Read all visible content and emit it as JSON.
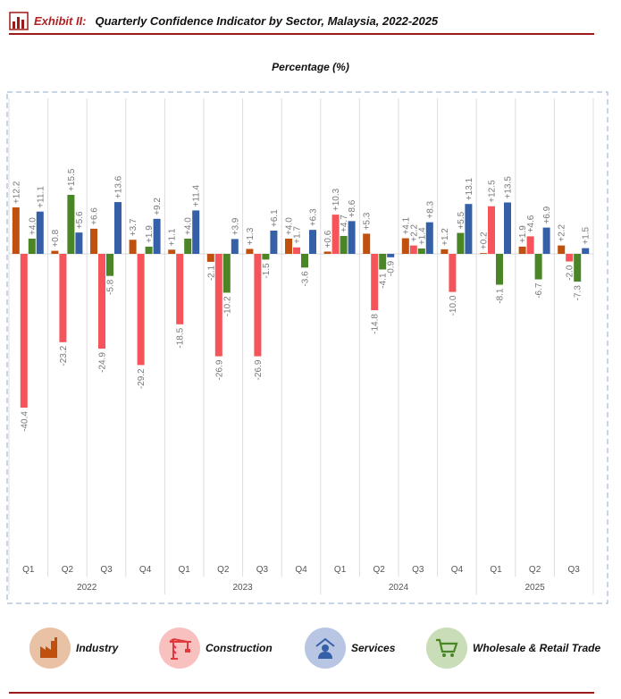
{
  "header": {
    "exhibit": "Exhibit II:",
    "title": "Quarterly Confidence Indicator by Sector, Malaysia, 2022-2025",
    "icon": "bar-chart-icon"
  },
  "chart_data": {
    "type": "bar",
    "ylabel": "Percentage (%)",
    "categories": [
      "Q1",
      "Q2",
      "Q3",
      "Q4",
      "Q1",
      "Q2",
      "Q3",
      "Q4",
      "Q1",
      "Q2",
      "Q3",
      "Q4",
      "Q1",
      "Q2",
      "Q3"
    ],
    "years": [
      {
        "label": "2022",
        "quarters": 4
      },
      {
        "label": "2023",
        "quarters": 4
      },
      {
        "label": "2024",
        "quarters": 4
      },
      {
        "label": "2025",
        "quarters": 3
      }
    ],
    "series": [
      {
        "name": "Industry",
        "color": "#C0500E",
        "values": [
          12.2,
          0.8,
          6.6,
          3.7,
          1.1,
          -2.1,
          1.3,
          4.0,
          0.6,
          5.3,
          4.1,
          1.2,
          0.2,
          1.9,
          2.2
        ]
      },
      {
        "name": "Construction",
        "color": "#F5555A",
        "values": [
          -40.4,
          -23.2,
          -24.9,
          -29.2,
          -18.5,
          -26.9,
          -26.9,
          1.7,
          10.3,
          -14.8,
          2.2,
          -10.0,
          12.5,
          4.6,
          -2.0
        ]
      },
      {
        "name": "Wholesale & Retail Trade",
        "color": "#4A8526",
        "values": [
          4.0,
          15.5,
          -5.8,
          1.9,
          4.0,
          -10.2,
          -1.5,
          -3.6,
          4.7,
          -4.1,
          1.4,
          5.5,
          -8.1,
          -6.7,
          -7.3
        ]
      },
      {
        "name": "Services",
        "color": "#3560A8",
        "values": [
          11.1,
          5.6,
          13.6,
          9.2,
          11.4,
          3.9,
          6.1,
          6.3,
          8.6,
          -0.9,
          8.3,
          13.1,
          13.5,
          6.9,
          1.5
        ]
      }
    ],
    "grid": "vertical separators",
    "legend": "bottom"
  },
  "legend": [
    {
      "label": "Industry",
      "icon": "factory-icon",
      "color": "#C0500E",
      "bg": "#E9C2A6"
    },
    {
      "label": "Construction",
      "icon": "crane-icon",
      "color": "#F5555A",
      "bg": "#F9C0C0"
    },
    {
      "label": "Services",
      "icon": "service-worker-icon",
      "color": "#3560A8",
      "bg": "#B8C6E3"
    },
    {
      "label": "Wholesale & Retail Trade",
      "icon": "shopping-cart-icon",
      "color": "#4A8526",
      "bg": "#C8DDB8"
    }
  ]
}
